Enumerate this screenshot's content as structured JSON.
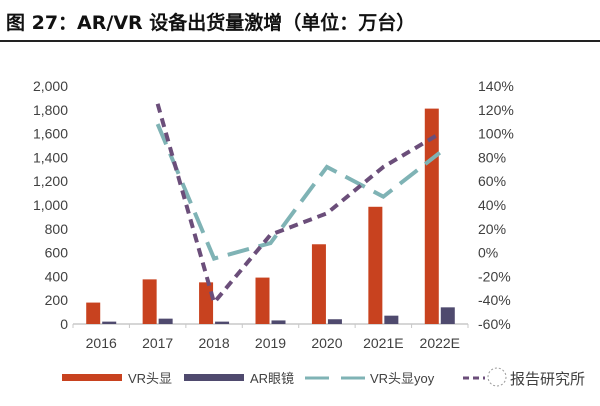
{
  "chart_data": {
    "type": "bar+line",
    "title": "图 27：AR/VR 设备出货量激增（单位：万台）",
    "categories": [
      "2016",
      "2017",
      "2018",
      "2019",
      "2020",
      "2021E",
      "2022E"
    ],
    "y_left": {
      "range": [
        0,
        2000
      ],
      "ticks": [
        "0",
        "200",
        "400",
        "600",
        "800",
        "1,000",
        "1,200",
        "1,400",
        "1,600",
        "1,800",
        "2,000"
      ]
    },
    "y_right": {
      "range": [
        -60,
        140
      ],
      "unit": "%",
      "ticks": [
        "-60%",
        "-40%",
        "-20%",
        "0%",
        "20%",
        "40%",
        "60%",
        "80%",
        "100%",
        "120%",
        "140%"
      ]
    },
    "grid": false,
    "legend_placement": "bottom",
    "series": [
      {
        "name": "VR头显",
        "kind": "bar",
        "axis": "left",
        "color": "#c8421f",
        "values": [
          180,
          375,
          350,
          390,
          670,
          985,
          1810
        ]
      },
      {
        "name": "AR眼镜",
        "kind": "bar",
        "axis": "left",
        "color": "#4f4a6e",
        "values": [
          20,
          45,
          20,
          30,
          40,
          70,
          140
        ]
      },
      {
        "name": "VR头显yoy",
        "kind": "line",
        "style": "long-dash",
        "axis": "right",
        "color": "#7fb3b5",
        "values": [
          null,
          108,
          -5,
          8,
          72,
          47,
          84
        ]
      },
      {
        "kind": "line",
        "style": "short-dash",
        "axis": "right",
        "color": "#6b4e7a",
        "values": [
          null,
          125,
          -42,
          15,
          33,
          72,
          100
        ]
      }
    ]
  },
  "watermark": "报告研究所"
}
